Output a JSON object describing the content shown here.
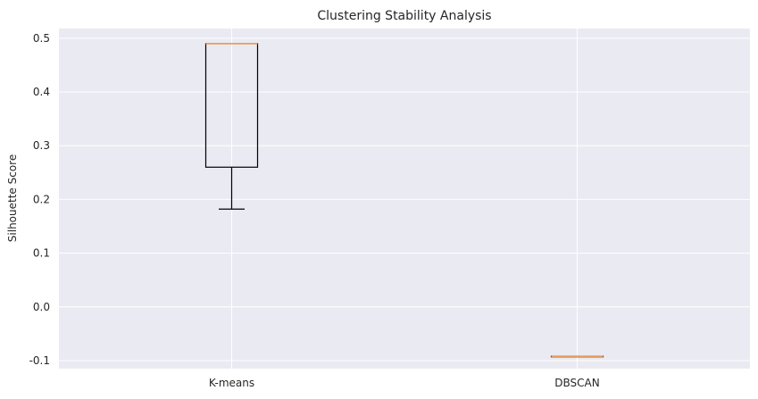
{
  "chart_data": {
    "type": "boxplot",
    "title": "Clustering Stability Analysis",
    "xlabel": "",
    "ylabel": "Silhouette Score",
    "ylim": [
      -0.115,
      0.518
    ],
    "yticks": [
      "-0.1",
      "0.0",
      "0.1",
      "0.2",
      "0.3",
      "0.4",
      "0.5"
    ],
    "ytick_values": [
      -0.1,
      0.0,
      0.1,
      0.2,
      0.3,
      0.4,
      0.5
    ],
    "categories": [
      "K-means",
      "DBSCAN"
    ],
    "boxes": [
      {
        "label": "K-means",
        "whisker_low": 0.182,
        "q1": 0.26,
        "median": 0.49,
        "q3": 0.49,
        "whisker_high": 0.49
      },
      {
        "label": "DBSCAN",
        "whisker_low": -0.092,
        "q1": -0.092,
        "median": -0.092,
        "q3": -0.092,
        "whisker_high": -0.092
      }
    ],
    "grid": true,
    "colors": {
      "background": "#eaeaf2",
      "grid": "#ffffff",
      "box": "#000000",
      "median": "#e69f5a",
      "text": "#262626"
    }
  }
}
